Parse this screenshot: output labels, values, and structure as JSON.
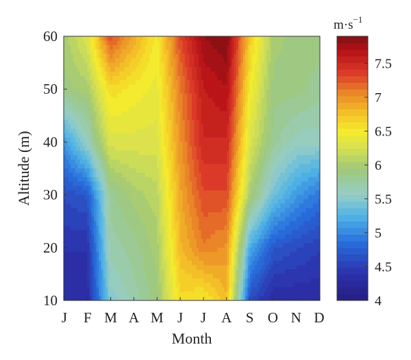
{
  "chart_data": {
    "type": "heatmap",
    "title": "",
    "xlabel": "Month",
    "ylabel": "Altitude (m)",
    "x_categories": [
      "J",
      "F",
      "M",
      "A",
      "M",
      "J",
      "J",
      "A",
      "S",
      "O",
      "N",
      "D"
    ],
    "y_ticks": [
      10,
      20,
      30,
      40,
      50,
      60
    ],
    "ylim": [
      10,
      60
    ],
    "altitudes": [
      10,
      20,
      30,
      40,
      50,
      60
    ],
    "values": [
      [
        4.3,
        4.3,
        5.5,
        5.7,
        5.9,
        6.6,
        6.5,
        6.8,
        4.6,
        4.3,
        4.3,
        4.3
      ],
      [
        4.4,
        4.4,
        5.7,
        5.8,
        6.0,
        6.8,
        7.1,
        7.0,
        5.2,
        4.7,
        4.6,
        4.5
      ],
      [
        4.6,
        4.7,
        5.8,
        6.0,
        6.1,
        6.9,
        7.3,
        7.3,
        6.0,
        5.4,
        5.1,
        4.9
      ],
      [
        5.1,
        5.6,
        6.3,
        6.3,
        6.3,
        7.0,
        7.5,
        7.5,
        6.3,
        5.8,
        5.6,
        5.6
      ],
      [
        5.9,
        6.0,
        6.6,
        6.5,
        6.4,
        7.1,
        7.6,
        7.7,
        6.5,
        5.9,
        5.9,
        5.8
      ],
      [
        6.0,
        6.3,
        7.3,
        6.9,
        6.5,
        7.3,
        7.8,
        7.9,
        6.7,
        6.0,
        5.9,
        5.9
      ]
    ],
    "colorbar": {
      "unit": "m·s",
      "unit_exponent": "−1",
      "min": 4,
      "max": 7.9,
      "ticks": [
        "4",
        "4.5",
        "5",
        "5.5",
        "6",
        "6.5",
        "7",
        "7.5"
      ],
      "colormap": "jet",
      "levels": 40
    },
    "grid": false
  }
}
